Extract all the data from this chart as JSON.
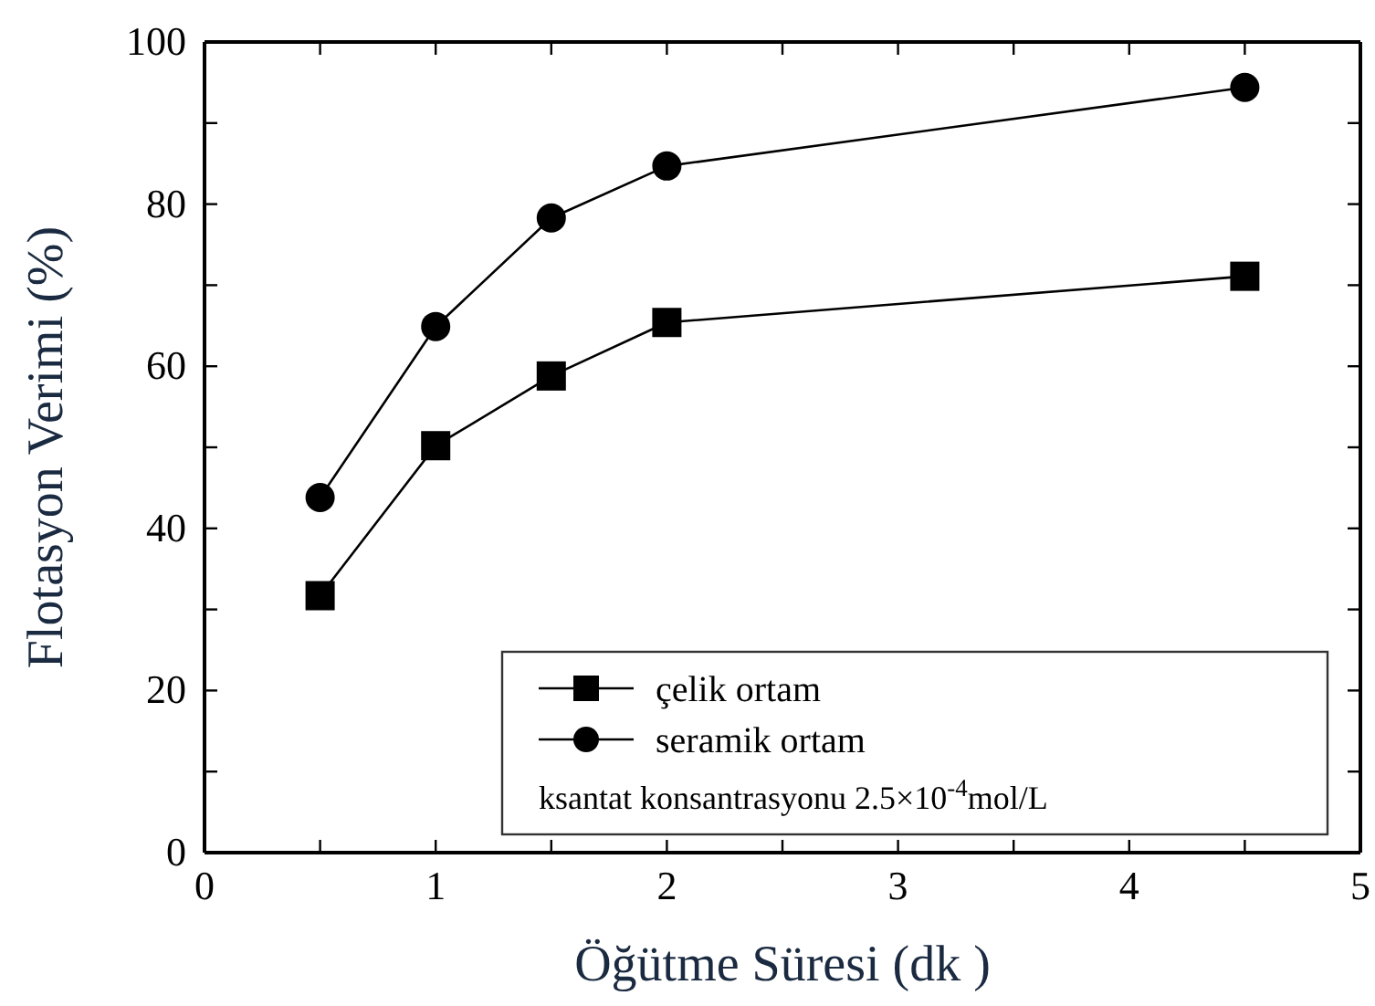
{
  "chart_data": {
    "type": "line",
    "xlabel": "Öğütme Süresi (dk )",
    "ylabel": "Flotasyon Verimi (%)",
    "x": [
      0.5,
      1,
      1.5,
      2,
      4.5
    ],
    "series": [
      {
        "name": "çelik ortam",
        "color": "#000000",
        "marker": "square",
        "values": [
          31.7,
          50.2,
          58.8,
          65.4,
          71.1
        ]
      },
      {
        "name": "seramik ortam",
        "color": "#000000",
        "marker": "circle",
        "values": [
          43.8,
          64.9,
          78.3,
          84.7,
          94.4
        ]
      }
    ],
    "xlim": [
      0,
      5
    ],
    "ylim": [
      0,
      100
    ],
    "xticks": [
      0,
      {
        "value": 0.5,
        "label": null
      },
      1,
      {
        "value": 1.5,
        "label": null
      },
      2,
      {
        "value": 2.5,
        "label": null
      },
      3,
      {
        "value": 3.5,
        "label": null
      },
      4,
      {
        "value": 4.5,
        "label": null
      },
      5
    ],
    "yticks": [
      0,
      {
        "value": 10,
        "label": null
      },
      20,
      {
        "value": 30,
        "label": null
      },
      40,
      {
        "value": 50,
        "label": null
      },
      60,
      {
        "value": 70,
        "label": null
      },
      80,
      {
        "value": 90,
        "label": null
      },
      100
    ],
    "annotations": [
      "ksantat konsantrasyonu 2.5×10$^{-4}$mol/L"
    ],
    "legend": "bottom",
    "grid": false,
    "line_style": "solid"
  }
}
